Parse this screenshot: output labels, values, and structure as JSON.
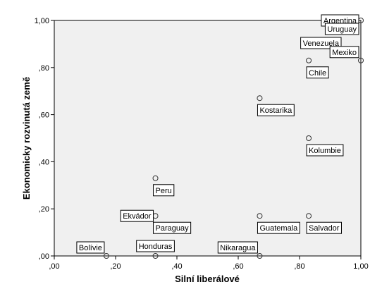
{
  "chart_data": {
    "type": "scatter",
    "title": "",
    "xlabel": "Silní liberálové",
    "ylabel": "Ekonomicky rozvinutá země",
    "xlim": [
      0,
      1
    ],
    "ylim": [
      0,
      1
    ],
    "grid": false,
    "x_ticks": [
      0,
      0.2,
      0.4,
      0.6,
      0.8,
      1.0
    ],
    "x_tick_labels": [
      ",00",
      ",20",
      ",40",
      ",60",
      ",80",
      "1,00"
    ],
    "y_ticks": [
      0,
      0.2,
      0.4,
      0.6,
      0.8,
      1.0
    ],
    "y_tick_labels": [
      ",00",
      ",20",
      ",40",
      ",60",
      ",80",
      "1,00"
    ],
    "points": [
      {
        "label": "Argentina",
        "x": 1.0,
        "y": 1.0,
        "label_pos": "left"
      },
      {
        "label": "Uruguay",
        "x": 1.0,
        "y": 1.0,
        "label_pos": "below-left"
      },
      {
        "label": "Venezuela",
        "x": 1.0,
        "y": 1.0,
        "label_pos": "far-below-left"
      },
      {
        "label": "Mexiko",
        "x": 1.0,
        "y": 0.83,
        "label_pos": "above-left"
      },
      {
        "label": "Chile",
        "x": 0.83,
        "y": 0.83,
        "label_pos": "below-right"
      },
      {
        "label": "Kostarika",
        "x": 0.67,
        "y": 0.67,
        "label_pos": "below-right"
      },
      {
        "label": "Kolumbie",
        "x": 0.83,
        "y": 0.5,
        "label_pos": "below-right"
      },
      {
        "label": "Peru",
        "x": 0.33,
        "y": 0.33,
        "label_pos": "below-right"
      },
      {
        "label": "Ekvádor",
        "x": 0.33,
        "y": 0.17,
        "label_pos": "left"
      },
      {
        "label": "Paraguay",
        "x": 0.33,
        "y": 0.17,
        "label_pos": "below-right"
      },
      {
        "label": "Guatemala",
        "x": 0.67,
        "y": 0.17,
        "label_pos": "below-right"
      },
      {
        "label": "Salvador",
        "x": 0.83,
        "y": 0.17,
        "label_pos": "below-right"
      },
      {
        "label": "Bolívie",
        "x": 0.17,
        "y": 0.0,
        "label_pos": "above-left"
      },
      {
        "label": "Honduras",
        "x": 0.33,
        "y": 0.0,
        "label_pos": "above"
      },
      {
        "label": "Nikaragua",
        "x": 0.67,
        "y": 0.0,
        "label_pos": "above-left"
      }
    ]
  }
}
